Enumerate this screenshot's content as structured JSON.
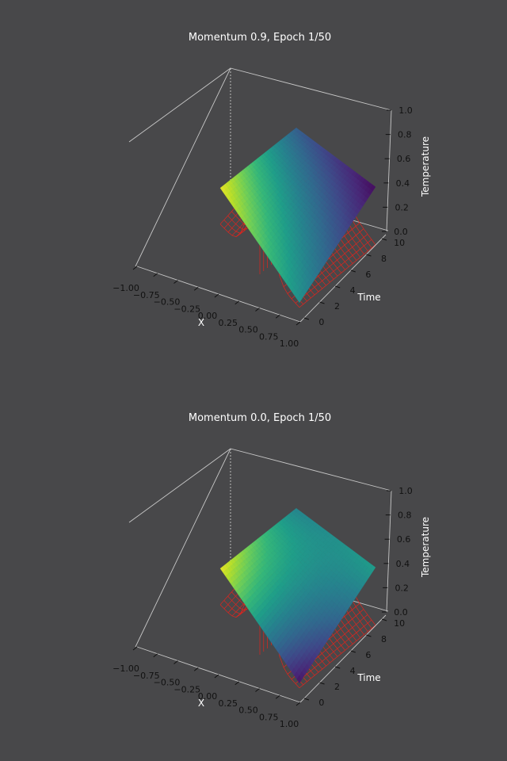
{
  "chart_data": [
    {
      "type": "surface3d",
      "title": "Momentum 0.9, Epoch 1/50",
      "xlabel": "X",
      "ylabel": "Time",
      "zlabel": "Temperature",
      "xlim": [
        -1.0,
        1.0
      ],
      "ylim": [
        0,
        10
      ],
      "zlim": [
        0.0,
        1.0
      ],
      "xticks": [
        "−1.00",
        "−0.75",
        "−0.50",
        "−0.25",
        "0.00",
        "0.25",
        "0.50",
        "0.75",
        "1.00"
      ],
      "yticks": [
        "0",
        "2",
        "4",
        "6",
        "8",
        "10"
      ],
      "zticks": [
        "0.0",
        "0.2",
        "0.4",
        "0.6",
        "0.8",
        "1.0"
      ],
      "series": [
        {
          "kind": "wireframe",
          "color": "#e8231c"
        },
        {
          "kind": "surface",
          "colormap": "viridis",
          "corners": {
            "x-1_t0": 0.42,
            "x1_t0": 0.16,
            "x-1_t10": 0.4,
            "x1_t10": 0.6
          },
          "colorStops": {
            "x-1_t0": 0.97,
            "x1_t0": 0.5,
            "x-1_t10": 0.3,
            "x1_t10": 0.03
          }
        }
      ]
    },
    {
      "type": "surface3d",
      "title": "Momentum 0.0, Epoch 1/50",
      "xlabel": "X",
      "ylabel": "Time",
      "zlabel": "Temperature",
      "xlim": [
        -1.0,
        1.0
      ],
      "ylim": [
        0,
        10
      ],
      "zlim": [
        0.0,
        1.0
      ],
      "xticks": [
        "−1.00",
        "−0.75",
        "−0.50",
        "−0.25",
        "0.00",
        "0.25",
        "0.50",
        "0.75",
        "1.00"
      ],
      "yticks": [
        "0",
        "2",
        "4",
        "6",
        "8",
        "10"
      ],
      "zticks": [
        "0.0",
        "0.2",
        "0.4",
        "0.6",
        "0.8",
        "1.0"
      ],
      "series": [
        {
          "kind": "wireframe",
          "color": "#e8231c"
        },
        {
          "kind": "surface",
          "colormap": "viridis",
          "corners": {
            "x-1_t0": 0.42,
            "x1_t0": 0.16,
            "x-1_t10": 0.4,
            "x1_t10": 0.6
          },
          "colorStops": {
            "x-1_t0": 0.97,
            "x1_t0": 0.05,
            "x-1_t10": 0.45,
            "x1_t10": 0.55
          }
        }
      ]
    }
  ]
}
